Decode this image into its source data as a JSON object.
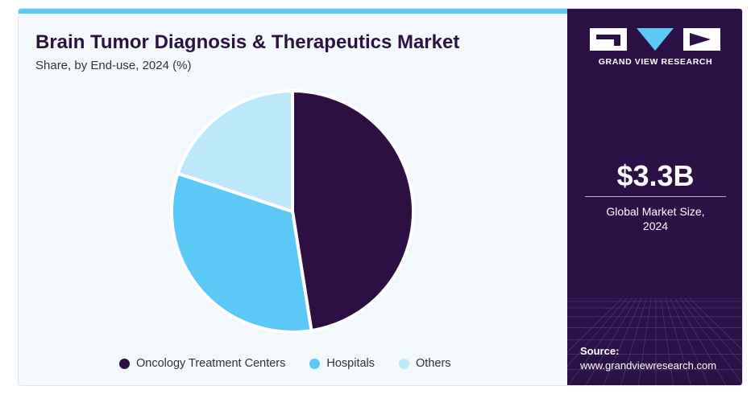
{
  "chart_data": {
    "type": "pie",
    "title": "Brain Tumor Diagnosis & Therapeutics Market",
    "subtitle": "Share, by End-use, 2024 (%)",
    "categories": [
      "Oncology Treatment Centers",
      "Hospitals",
      "Others"
    ],
    "values": [
      47.5,
      32.6,
      19.9
    ],
    "colors": [
      "#2e0f43",
      "#5bc8f5",
      "#bde8fa"
    ],
    "legend_position": "bottom"
  },
  "sidebar": {
    "brand": "GRAND VIEW RESEARCH",
    "market_size_value": "$3.3B",
    "market_size_label_line1": "Global Market Size,",
    "market_size_label_line2": "2024",
    "source_label": "Source:",
    "source_url": "www.grandviewresearch.com"
  }
}
